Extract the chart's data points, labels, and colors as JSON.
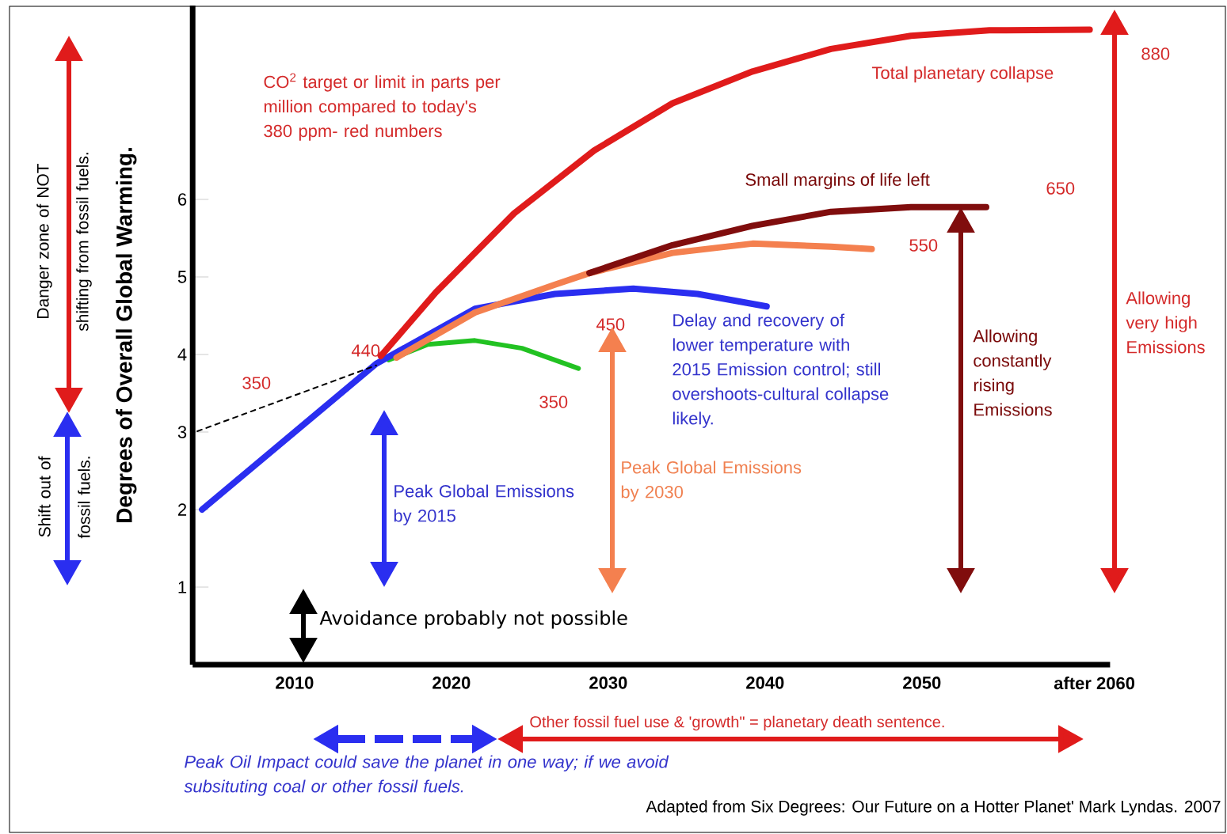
{
  "chart_data": {
    "type": "line",
    "ylabel": "Degrees of Overall Global Warming.",
    "xlim": [
      2003.5,
      2062
    ],
    "ylim": [
      0,
      8.5
    ],
    "xticks": [
      2010,
      2020,
      2030,
      2040,
      2050,
      {
        "value": 2061,
        "label": "after 2060"
      }
    ],
    "yticks": [
      1,
      2,
      3,
      4,
      5,
      6
    ],
    "series": [
      {
        "color": "#22c222",
        "x": [
          2016,
          2018.5,
          2021.5,
          2024.5,
          2028.1
        ],
        "values": [
          3.93,
          4.13,
          4.18,
          4.08,
          3.82
        ]
      },
      {
        "color": "#2a2ef0",
        "x": [
          2004.1,
          2015.2,
          2021.5,
          2026.6,
          2031.6,
          2035.7,
          2040.1
        ],
        "values": [
          2.0,
          3.88,
          4.59,
          4.78,
          4.85,
          4.78,
          4.62
        ]
      },
      {
        "color": "#f4804f",
        "x": [
          2016.5,
          2021.5,
          2026.6,
          2028.8,
          2034.1,
          2039.2,
          2044.2,
          2046.8
        ],
        "values": [
          3.96,
          4.54,
          4.9,
          5.05,
          5.31,
          5.43,
          5.39,
          5.36
        ]
      },
      {
        "color": "#800d0d",
        "x": [
          2028.8,
          2034.1,
          2039.2,
          2044.2,
          2049.3,
          2054.1
        ],
        "values": [
          5.05,
          5.41,
          5.66,
          5.84,
          5.9,
          5.9
        ]
      },
      {
        "color": "#e01b1b",
        "x": [
          2015.5,
          2019,
          2024,
          2029.1,
          2034.1,
          2039.2,
          2044.2,
          2049.3,
          2054.3,
          2060.7
        ],
        "values": [
          3.98,
          4.8,
          5.82,
          6.63,
          7.24,
          7.65,
          7.94,
          8.11,
          8.18,
          8.19
        ]
      },
      {
        "color": "#000000",
        "line_style": "dashed",
        "x": [
          2003.8,
          2015.2
        ],
        "values": [
          3.01,
          3.86
        ]
      }
    ],
    "annotations": [
      "CO$^{2}$ target or limit in parts per million compared to today's 380 ppm- red numbers",
      "350",
      "440",
      "450",
      "350",
      "550",
      "650",
      "880",
      "Total planetary collapse",
      "Small margins of life left",
      "Delay and recovery of lower temperature with 2015 Emission control; still overshoots-cultural collapse likely.",
      "Peak Global Emissions by 2015",
      "Peak Global Emissions by 2030",
      "Allowing constantly rising Emissions",
      "Allowing very high Emissions",
      "Avoidance probably not possible",
      "Other fossil fuel use & 'growth\" = planetary death sentence.",
      "Peak Oil Impact could save  the planet in one way; if we avoid subsituting coal or other fossil fuels.",
      "Adapted from Six Degrees: Our Future on a Hotter Planet'  Mark Lyndas. 2007",
      "Danger zone of NOT shifting from fossil fuels.",
      "Shift out of fossil fuels."
    ]
  }
}
